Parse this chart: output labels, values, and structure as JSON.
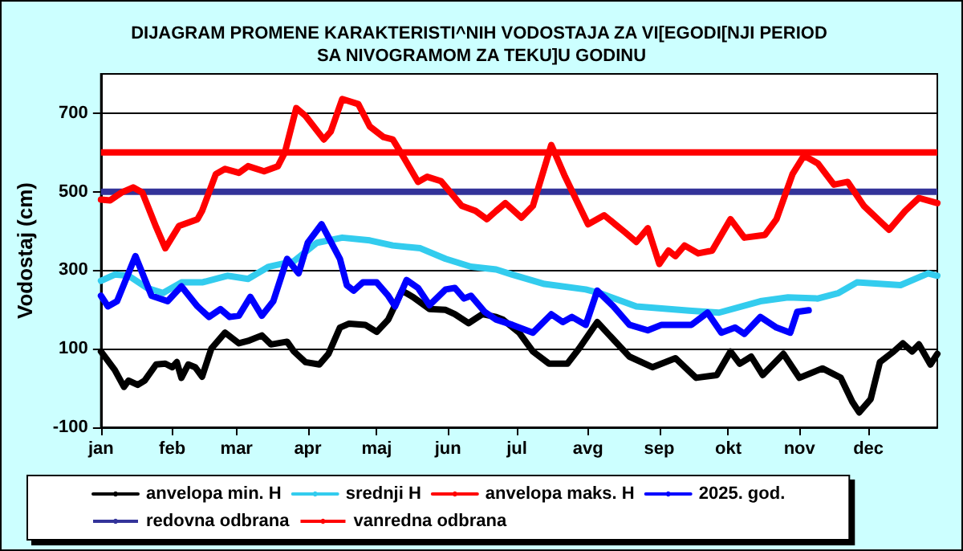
{
  "chart_data": {
    "type": "line",
    "title": "DIJAGRAM PROMENE KARAKTERISTI^NIH VODOSTAJA ZA VI[EGODI[NJI PERIOD SA NIVOGRAMOM ZA TEKU]U GODINU",
    "ylabel": "Vodostaj (cm)",
    "xlim": [
      "--01-01",
      "--12-31"
    ],
    "xticks": [
      {
        "value": "--01-01",
        "label": "jan"
      },
      {
        "value": "--02-01",
        "label": "feb"
      },
      {
        "value": "--03-01",
        "label": "mar"
      },
      {
        "value": "--04-01",
        "label": "apr"
      },
      {
        "value": "--05-01",
        "label": "maj"
      },
      {
        "value": "--06-01",
        "label": "jun"
      },
      {
        "value": "--07-01",
        "label": "jul"
      },
      {
        "value": "--08-01",
        "label": "avg"
      },
      {
        "value": "--09-01",
        "label": "sep"
      },
      {
        "value": "--10-01",
        "label": "okt"
      },
      {
        "value": "--11-01",
        "label": "nov"
      },
      {
        "value": "--12-01",
        "label": "dec"
      }
    ],
    "ylim": [
      -100,
      800
    ],
    "yticks": [
      -100,
      100,
      300,
      500,
      700
    ],
    "grid": "y",
    "legend": "bottom",
    "marker": "none",
    "line_style": "solid",
    "series": [
      {
        "name": "anvelopa min. H",
        "color": "#000000",
        "x": [
          "--01-01",
          "--01-07",
          "--01-11",
          "--01-13",
          "--01-17",
          "--01-20",
          "--01-25",
          "--01-29",
          "--02-01",
          "--02-03",
          "--02-05",
          "--02-08",
          "--02-11",
          "--02-14",
          "--02-18",
          "--02-24",
          "--03-02",
          "--03-06",
          "--03-12",
          "--03-16",
          "--03-23",
          "--03-26",
          "--03-31",
          "--04-06",
          "--04-10",
          "--04-15",
          "--04-19",
          "--04-26",
          "--05-01",
          "--05-06",
          "--05-12",
          "--05-17",
          "--05-24",
          "--05-31",
          "--06-04",
          "--06-10",
          "--06-16",
          "--06-22",
          "--06-25",
          "--07-02",
          "--07-08",
          "--07-15",
          "--07-23",
          "--07-28",
          "--08-05",
          "--08-11",
          "--08-19",
          "--08-29",
          "--09-08",
          "--09-17",
          "--09-26",
          "--10-02",
          "--10-06",
          "--10-11",
          "--10-16",
          "--10-25",
          "--11-01",
          "--11-11",
          "--11-19",
          "--11-24",
          "--11-27",
          "--12-02",
          "--12-06",
          "--12-12",
          "--12-16",
          "--12-20",
          "--12-23",
          "--12-28",
          "--12-31"
        ],
        "values": [
          93,
          46,
          3,
          19,
          8,
          19,
          60,
          62,
          53,
          66,
          26,
          60,
          53,
          29,
          100,
          141,
          114,
          120,
          134,
          111,
          118,
          93,
          66,
          60,
          87,
          154,
          164,
          161,
          143,
          174,
          248,
          231,
          201,
          199,
          188,
          165,
          188,
          181,
          174,
          141,
          93,
          62,
          62,
          100,
          168,
          130,
          80,
          53,
          76,
          26,
          33,
          93,
          62,
          80,
          33,
          87,
          26,
          50,
          26,
          -35,
          -62,
          -28,
          66,
          93,
          114,
          93,
          111,
          60,
          87
        ]
      },
      {
        "name": "srednji H",
        "color": "#33ccee",
        "x": [
          "--01-01",
          "--01-07",
          "--01-13",
          "--01-21",
          "--01-28",
          "--02-05",
          "--02-14",
          "--02-25",
          "--03-06",
          "--03-15",
          "--03-26",
          "--04-05",
          "--04-16",
          "--04-28",
          "--05-08",
          "--05-20",
          "--05-31",
          "--06-11",
          "--06-22",
          "--06-29",
          "--07-13",
          "--07-31",
          "--08-06",
          "--08-22",
          "--09-14",
          "--09-27",
          "--10-15",
          "--10-27",
          "--11-09",
          "--11-18",
          "--11-26",
          "--12-15",
          "--12-27",
          "--12-31"
        ],
        "values": [
          273,
          289,
          286,
          255,
          242,
          269,
          269,
          286,
          278,
          309,
          323,
          370,
          383,
          376,
          363,
          356,
          329,
          309,
          302,
          289,
          265,
          251,
          242,
          208,
          197,
          192,
          221,
          231,
          228,
          242,
          269,
          262,
          292,
          286
        ]
      },
      {
        "name": "anvelopa maks. H",
        "color": "#ff0000",
        "x": [
          "--01-01",
          "--01-05",
          "--01-10",
          "--01-15",
          "--01-19",
          "--01-25",
          "--01-29",
          "--02-04",
          "--02-12",
          "--02-14",
          "--02-20",
          "--02-24",
          "--03-02",
          "--03-06",
          "--03-13",
          "--03-19",
          "--03-22",
          "--03-27",
          "--03-31",
          "--04-08",
          "--04-11",
          "--04-16",
          "--04-23",
          "--04-28",
          "--05-04",
          "--05-08",
          "--05-13",
          "--05-19",
          "--05-23",
          "--05-29",
          "--06-07",
          "--06-13",
          "--06-18",
          "--06-22",
          "--06-26",
          "--07-03",
          "--07-08",
          "--07-16",
          "--07-22",
          "--08-01",
          "--08-08",
          "--08-17",
          "--08-22",
          "--08-27",
          "--09-01",
          "--09-05",
          "--09-08",
          "--09-12",
          "--09-18",
          "--09-24",
          "--10-02",
          "--10-08",
          "--10-17",
          "--10-22",
          "--10-29",
          "--11-03",
          "--11-09",
          "--11-16",
          "--11-22",
          "--11-29",
          "--12-10",
          "--12-17",
          "--12-23",
          "--12-31"
        ],
        "values": [
          480,
          478,
          498,
          511,
          498,
          410,
          356,
          413,
          430,
          451,
          545,
          558,
          548,
          565,
          552,
          565,
          599,
          713,
          693,
          633,
          653,
          736,
          723,
          666,
          639,
          633,
          585,
          525,
          538,
          527,
          464,
          451,
          430,
          451,
          471,
          434,
          464,
          619,
          538,
          417,
          440,
          397,
          372,
          407,
          316,
          350,
          336,
          363,
          343,
          350,
          430,
          383,
          390,
          430,
          545,
          592,
          572,
          518,
          525,
          464,
          403,
          451,
          484,
          471
        ]
      },
      {
        "name": "2025. god.",
        "color": "#0000ff",
        "x": [
          "--01-01",
          "--01-04",
          "--01-08",
          "--01-16",
          "--01-23",
          "--01-30",
          "--02-05",
          "--02-12",
          "--02-17",
          "--02-22",
          "--02-26",
          "--03-02",
          "--03-07",
          "--03-12",
          "--03-17",
          "--03-23",
          "--03-28",
          "--04-01",
          "--04-07",
          "--04-15",
          "--04-18",
          "--04-21",
          "--04-25",
          "--05-01",
          "--05-06",
          "--05-09",
          "--05-14",
          "--05-19",
          "--05-24",
          "--05-31",
          "--06-04",
          "--06-08",
          "--06-11",
          "--06-17",
          "--06-22",
          "--06-29",
          "--07-08",
          "--07-16",
          "--07-21",
          "--07-25",
          "--07-31",
          "--08-05",
          "--08-12",
          "--08-19",
          "--08-27",
          "--09-02",
          "--09-09",
          "--09-15",
          "--09-22",
          "--09-28",
          "--10-04",
          "--10-08",
          "--10-15",
          "--10-22",
          "--10-28",
          "--10-31",
          "--11-05"
        ],
        "values": [
          235,
          208,
          221,
          336,
          235,
          221,
          259,
          208,
          181,
          201,
          181,
          184,
          232,
          184,
          221,
          329,
          292,
          370,
          417,
          329,
          262,
          248,
          269,
          269,
          235,
          208,
          275,
          255,
          211,
          251,
          255,
          228,
          235,
          194,
          174,
          161,
          141,
          188,
          168,
          181,
          161,
          248,
          208,
          161,
          147,
          161,
          161,
          161,
          192,
          141,
          154,
          138,
          181,
          154,
          141,
          194,
          198
        ]
      }
    ],
    "ref_lines": [
      {
        "axis": "y",
        "value": 500,
        "label": "redovna odbrana",
        "color": "#333399"
      },
      {
        "axis": "y",
        "value": 600,
        "label": "vanredna odbrana",
        "color": "#ff0000"
      }
    ]
  }
}
